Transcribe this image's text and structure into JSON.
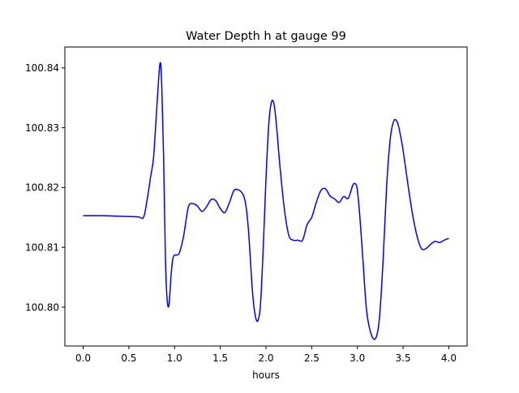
{
  "chart_data": {
    "type": "line",
    "title": "Water Depth h at gauge 99",
    "xlabel": "hours",
    "ylabel": "",
    "xlim": [
      -0.2,
      4.2
    ],
    "ylim": [
      100.7935,
      100.8435
    ],
    "xticks": [
      0.0,
      0.5,
      1.0,
      1.5,
      2.0,
      2.5,
      3.0,
      3.5,
      4.0
    ],
    "xtick_labels": [
      "0.0",
      "0.5",
      "1.0",
      "1.5",
      "2.0",
      "2.5",
      "3.0",
      "3.5",
      "4.0"
    ],
    "yticks": [
      100.8,
      100.81,
      100.82,
      100.83,
      100.84
    ],
    "ytick_labels": [
      "100.80",
      "100.81",
      "100.82",
      "100.83",
      "100.84"
    ],
    "grid": false,
    "series": [
      {
        "color": "#0000ff",
        "x": [
          0.0,
          0.2,
          0.4,
          0.6,
          0.66,
          0.7,
          0.74,
          0.77,
          0.8,
          0.84,
          0.86,
          0.88,
          0.9,
          0.92,
          0.94,
          0.96,
          0.98,
          1.0,
          1.05,
          1.1,
          1.15,
          1.2,
          1.25,
          1.3,
          1.35,
          1.4,
          1.45,
          1.5,
          1.55,
          1.6,
          1.65,
          1.7,
          1.75,
          1.78,
          1.81,
          1.85,
          1.88,
          1.91,
          1.94,
          1.97,
          2.0,
          2.03,
          2.06,
          2.09,
          2.12,
          2.15,
          2.2,
          2.25,
          2.3,
          2.35,
          2.4,
          2.45,
          2.5,
          2.55,
          2.6,
          2.65,
          2.7,
          2.75,
          2.8,
          2.85,
          2.9,
          2.95,
          2.98,
          3.0,
          3.03,
          3.06,
          3.1,
          3.15,
          3.2,
          3.24,
          3.28,
          3.32,
          3.36,
          3.4,
          3.44,
          3.47,
          3.5,
          3.55,
          3.6,
          3.65,
          3.7,
          3.75,
          3.8,
          3.85,
          3.9,
          3.95,
          4.0
        ],
        "y": [
          100.8153,
          100.8153,
          100.8152,
          100.8151,
          100.815,
          100.818,
          100.822,
          100.825,
          100.832,
          100.8407,
          100.837,
          100.825,
          100.808,
          100.801,
          100.8005,
          100.805,
          100.808,
          100.8087,
          100.809,
          100.812,
          100.8167,
          100.8173,
          100.8169,
          100.816,
          100.8168,
          100.818,
          100.8178,
          100.8165,
          100.8158,
          100.8175,
          100.8195,
          100.8196,
          100.8188,
          100.817,
          100.8125,
          100.803,
          100.7988,
          100.7977,
          100.8005,
          100.81,
          100.8215,
          100.8305,
          100.8343,
          100.8338,
          100.8295,
          100.824,
          100.8165,
          100.812,
          100.8112,
          100.8112,
          100.8112,
          100.8138,
          100.815,
          100.8175,
          100.8195,
          100.8198,
          100.8186,
          100.8181,
          100.8175,
          100.8185,
          100.8182,
          100.8204,
          100.8206,
          100.8195,
          100.8145,
          100.808,
          100.7995,
          100.7955,
          100.7948,
          100.798,
          100.8075,
          100.8203,
          100.8282,
          100.8312,
          100.8308,
          100.8288,
          100.8262,
          100.8208,
          100.8158,
          100.812,
          100.8098,
          100.8098,
          100.8105,
          100.811,
          100.8108,
          100.8112,
          100.8115
        ]
      }
    ]
  }
}
